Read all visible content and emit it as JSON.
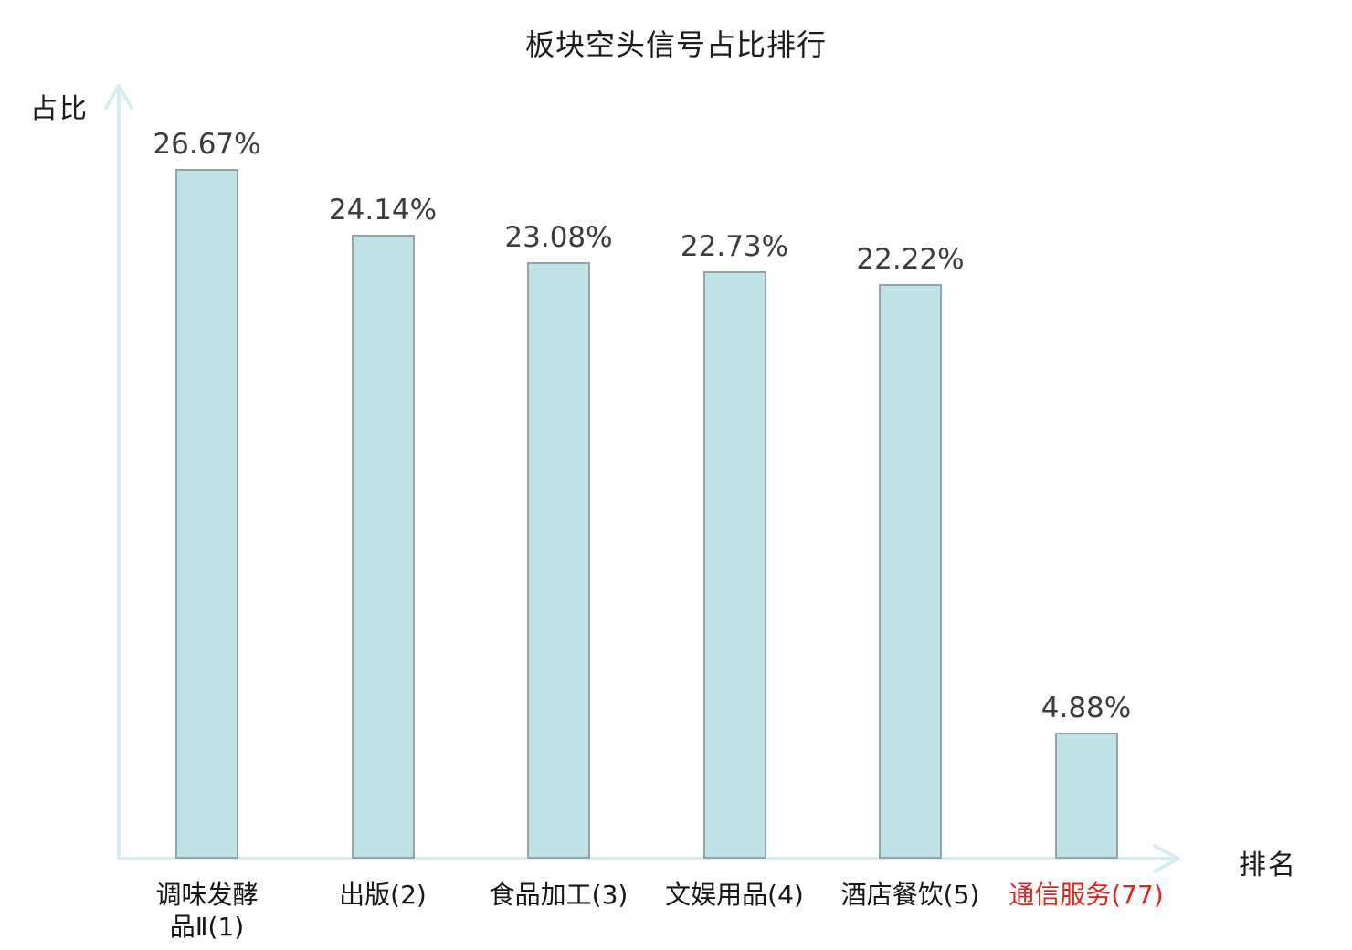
{
  "chart_data": {
    "type": "bar",
    "title": "板块空头信号占比排行",
    "ylabel": "占比",
    "xlabel": "排名",
    "categories": [
      {
        "label": "调味发酵品Ⅱ(1)",
        "label_lines": [
          "调味发酵",
          "品Ⅱ(1)"
        ],
        "color": "#161616"
      },
      {
        "label": "出版(2)",
        "label_lines": [
          "出版(2)"
        ],
        "color": "#161616"
      },
      {
        "label": "食品加工(3)",
        "label_lines": [
          "食品加工(3)"
        ],
        "color": "#161616"
      },
      {
        "label": "文娱用品(4)",
        "label_lines": [
          "文娱用品(4)"
        ],
        "color": "#161616"
      },
      {
        "label": "酒店餐饮(5)",
        "label_lines": [
          "酒店餐饮(5)"
        ],
        "color": "#161616"
      },
      {
        "label": "通信服务(77)",
        "label_lines": [
          "通信服务(77)"
        ],
        "color": "#e3241c"
      }
    ],
    "values": [
      26.67,
      24.14,
      23.08,
      22.73,
      22.22,
      4.88
    ],
    "value_labels": [
      "26.67%",
      "24.14%",
      "23.08%",
      "22.73%",
      "22.22%",
      "4.88%"
    ],
    "ylim": [
      0,
      33
    ],
    "grid": false,
    "legend": "none",
    "colors": {
      "bar_fill": "#c0e1e5",
      "bar_border": "#8fa6ab",
      "axis": "#d8eeee",
      "value_text": "#3c3c3c",
      "title_text": "#1c1c1c",
      "highlight_red": "#e3241c"
    }
  }
}
